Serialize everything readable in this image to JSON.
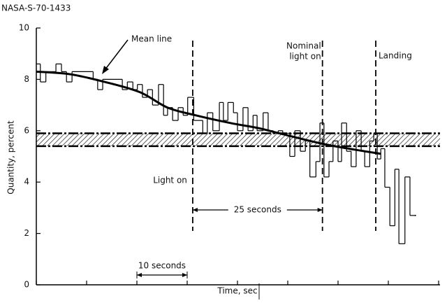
{
  "chart_data": {
    "type": "step",
    "title": "NASA-S-70-1433",
    "x_label": "Time, sec",
    "y_label": "Quantity, percent",
    "xlim": [
      0,
      80
    ],
    "xticks": [
      0,
      10,
      20,
      30,
      40,
      50,
      60,
      70,
      80
    ],
    "ylim": [
      0,
      10
    ],
    "yticks": [
      0,
      2,
      4,
      6,
      8,
      10
    ],
    "series": [
      {
        "color": "#000000",
        "x": [
          0,
          0.8,
          1.9,
          3.9,
          5.0,
          6.0,
          7.1,
          11.3,
          12.2,
          13.2,
          17.1,
          18.1,
          19.2,
          20.1,
          21.1,
          22.1,
          23.1,
          24.3,
          25.3,
          26.1,
          27.1,
          28.2,
          29.2,
          30.1,
          31.3,
          33.1,
          34.0,
          35.1,
          36.4,
          37.2,
          38.1,
          39.2,
          40.0,
          41.1,
          42.1,
          43.1,
          43.9,
          45.1,
          46.1,
          47.1,
          48.1,
          49.0,
          50.4,
          51.4,
          52.5,
          53.5,
          54.4,
          55.6,
          56.4,
          57.2,
          58.2,
          59.0,
          60.0,
          60.7,
          61.7,
          62.6,
          63.6,
          64.6,
          65.3,
          66.3,
          67.1,
          67.8,
          68.5,
          69.3,
          70.3,
          71.3,
          72.1,
          73.3,
          74.3,
          75.4
        ],
        "values": [
          8.6,
          7.9,
          8.3,
          8.6,
          8.3,
          7.9,
          8.3,
          8.0,
          7.6,
          8.0,
          7.6,
          7.9,
          7.6,
          7.8,
          7.3,
          7.6,
          7.0,
          7.8,
          6.6,
          6.9,
          6.4,
          6.9,
          6.6,
          7.3,
          6.4,
          5.9,
          6.7,
          6.0,
          7.1,
          6.4,
          7.1,
          6.7,
          6.0,
          6.9,
          6.0,
          6.6,
          6.0,
          6.7,
          6.0,
          5.9,
          6.0,
          5.9,
          5.0,
          6.0,
          5.2,
          5.6,
          4.2,
          4.8,
          6.3,
          4.2,
          4.8,
          5.6,
          4.8,
          6.3,
          5.2,
          4.6,
          6.0,
          5.2,
          4.6,
          5.6,
          5.9,
          4.9,
          5.3,
          3.8,
          2.3,
          4.5,
          1.6,
          4.2,
          2.7,
          2.7
        ]
      },
      {
        "name": "Mean line",
        "color": "#000000",
        "x": [
          0,
          6.7,
          13.6,
          20.6,
          26.1,
          31.7,
          38.6,
          44.2,
          48.3,
          56.7,
          62.2,
          68.5
        ],
        "values": [
          8.3,
          8.2,
          7.9,
          7.5,
          6.9,
          6.6,
          6.3,
          6.1,
          5.9,
          5.5,
          5.3,
          5.1
        ]
      }
    ],
    "band": {
      "low": 5.4,
      "high": 5.9
    },
    "events": [
      {
        "label": [
          "Light on"
        ],
        "x": 31.1
      },
      {
        "label": [
          "Nominal",
          "light on"
        ],
        "x": 56.9
      },
      {
        "label": [
          "Landing"
        ],
        "x": 67.5
      }
    ],
    "spans": [
      {
        "label": "25 seconds",
        "from": 31.1,
        "to": 56.9
      },
      {
        "label": "10 seconds",
        "from": 20,
        "to": 30
      }
    ]
  }
}
